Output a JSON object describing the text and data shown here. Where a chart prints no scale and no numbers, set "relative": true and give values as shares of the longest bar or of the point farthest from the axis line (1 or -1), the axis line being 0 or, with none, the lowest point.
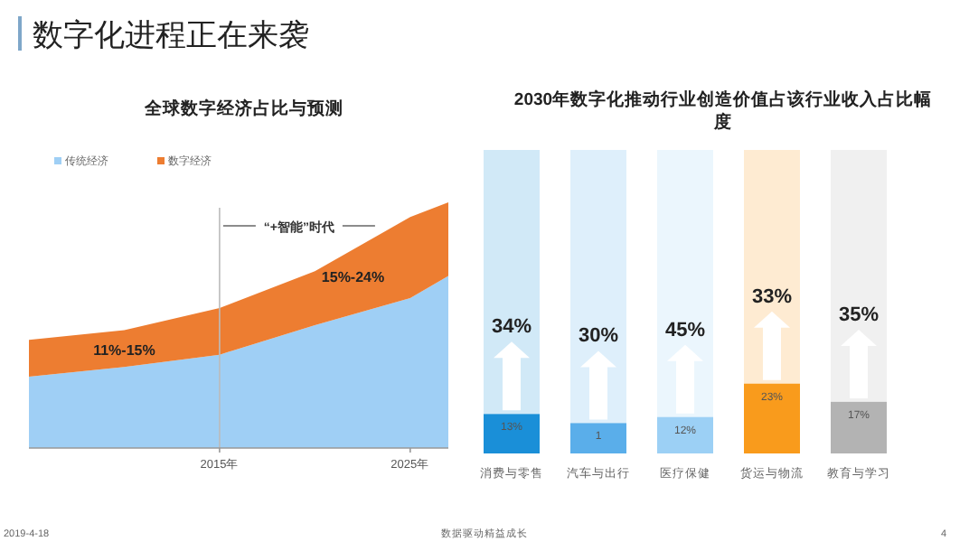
{
  "chart_data": [
    {
      "type": "area",
      "title": "全球数字经济占比与预测",
      "stacked": true,
      "relative": true,
      "x": [
        2005,
        2010,
        2015,
        2020,
        2025,
        2027
      ],
      "xlim": [
        2005,
        2027
      ],
      "xticks": [
        {
          "value": 2015,
          "label": "2015年"
        },
        {
          "value": 2025,
          "label": "2025年"
        }
      ],
      "tick_labels": "x",
      "legend": "top left",
      "series": [
        {
          "name": "传统经济",
          "color": "#9fcff5",
          "values": [
            0.29,
            0.33,
            0.38,
            0.5,
            0.61,
            0.7
          ]
        },
        {
          "name": "数字经济",
          "color": "#ed7d31",
          "values": [
            0.15,
            0.15,
            0.19,
            0.22,
            0.33,
            0.3
          ]
        }
      ],
      "ref_lines": [
        {
          "axis": "x",
          "value": 2015
        }
      ],
      "annotations": [
        "11%-15%",
        "15%-24%",
        "“+智能”时代",
        "数字化进程正在来袭",
        "2019-4-18",
        "数据驱动精益成长",
        "4"
      ]
    },
    {
      "type": "bar",
      "title": "2030年数字化推动行业创造价值占该行业收入占比幅度",
      "categories": [
        "消费与零售",
        "汽车与出行",
        "医疗保健",
        "货运与物流",
        "教育与学习"
      ],
      "values": [
        13,
        10,
        12,
        23,
        17
      ],
      "value_labels": [
        "13%",
        null,
        "12%",
        "23%",
        "17%"
      ],
      "colors": [
        "#1a8fd8",
        "#5aaeea",
        "#9cd0f5",
        "#f99b1c",
        "#b3b3b3"
      ],
      "ylim": [
        0,
        100
      ],
      "tick_labels": "x",
      "annotations": [
        "34%",
        "30%",
        "45%",
        "33%",
        "35%",
        "1"
      ]
    }
  ]
}
